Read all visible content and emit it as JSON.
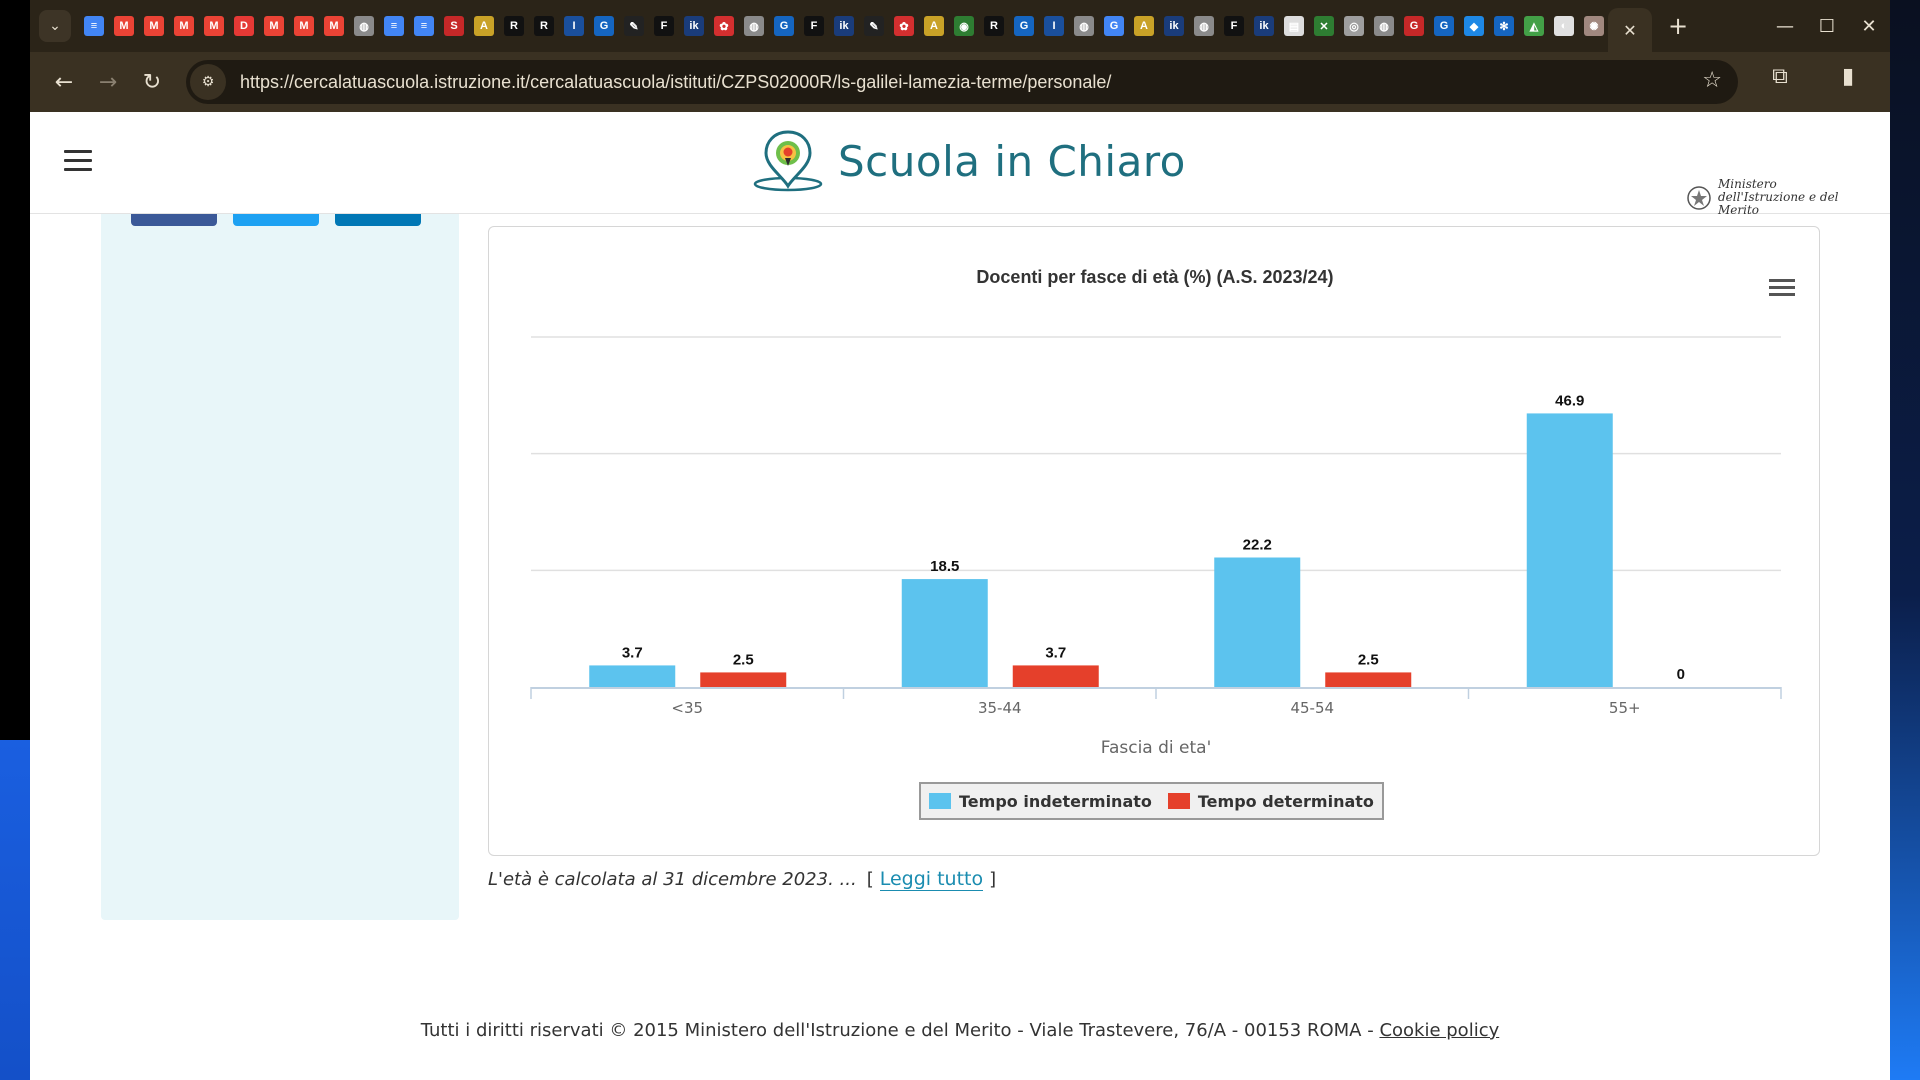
{
  "browser": {
    "url": "https://cercalatuascuola.istruzione.it/cercalatuascuola/istituti/CZPS02000R/ls-galilei-lamezia-terme/personale/",
    "favicons": [
      {
        "glyph": "≡",
        "color": "#4285f4"
      },
      {
        "glyph": "M",
        "color": "#ea4335"
      },
      {
        "glyph": "M",
        "color": "#ea4335"
      },
      {
        "glyph": "M",
        "color": "#ea4335"
      },
      {
        "glyph": "M",
        "color": "#ea4335"
      },
      {
        "glyph": "D",
        "color": "#e53935"
      },
      {
        "glyph": "M",
        "color": "#ea4335"
      },
      {
        "glyph": "M",
        "color": "#ea4335"
      },
      {
        "glyph": "M",
        "color": "#ea4335"
      },
      {
        "glyph": "◍",
        "color": "#8a8a8a"
      },
      {
        "glyph": "≡",
        "color": "#4285f4"
      },
      {
        "glyph": "≡",
        "color": "#4285f4"
      },
      {
        "glyph": "S",
        "color": "#c62828"
      },
      {
        "glyph": "A",
        "color": "#c9a227"
      },
      {
        "glyph": "R",
        "color": "#111111"
      },
      {
        "glyph": "R",
        "color": "#111111"
      },
      {
        "glyph": "I",
        "color": "#1a4f9c"
      },
      {
        "glyph": "G",
        "color": "#1565c0"
      },
      {
        "glyph": "✎",
        "color": "#222222"
      },
      {
        "glyph": "F",
        "color": "#111111"
      },
      {
        "glyph": "ik",
        "color": "#1a3c7a"
      },
      {
        "glyph": "✿",
        "color": "#d32f2f"
      },
      {
        "glyph": "◍",
        "color": "#8a8a8a"
      },
      {
        "glyph": "G",
        "color": "#1565c0"
      },
      {
        "glyph": "F",
        "color": "#111111"
      },
      {
        "glyph": "ik",
        "color": "#1a3c7a"
      },
      {
        "glyph": "✎",
        "color": "#222222"
      },
      {
        "glyph": "✿",
        "color": "#d32f2f"
      },
      {
        "glyph": "A",
        "color": "#c9a227"
      },
      {
        "glyph": "◉",
        "color": "#2e7d32"
      },
      {
        "glyph": "R",
        "color": "#111111"
      },
      {
        "glyph": "G",
        "color": "#1565c0"
      },
      {
        "glyph": "I",
        "color": "#1a4f9c"
      },
      {
        "glyph": "◍",
        "color": "#8a8a8a"
      },
      {
        "glyph": "G",
        "color": "#4285f4"
      },
      {
        "glyph": "A",
        "color": "#c9a227"
      },
      {
        "glyph": "ik",
        "color": "#1a3c7a"
      },
      {
        "glyph": "◍",
        "color": "#8a8a8a"
      },
      {
        "glyph": "F",
        "color": "#111111"
      },
      {
        "glyph": "ik",
        "color": "#1a3c7a"
      },
      {
        "glyph": "▤",
        "color": "#dddddd"
      },
      {
        "glyph": "✕",
        "color": "#2e7d32"
      },
      {
        "glyph": "◎",
        "color": "#9e9e9e"
      },
      {
        "glyph": "◍",
        "color": "#8a8a8a"
      },
      {
        "glyph": "G",
        "color": "#c62828"
      },
      {
        "glyph": "G",
        "color": "#1565c0"
      },
      {
        "glyph": "◆",
        "color": "#1e88e5"
      },
      {
        "glyph": "✻",
        "color": "#1565c0"
      },
      {
        "glyph": "◭",
        "color": "#43a047"
      },
      {
        "glyph": "◐",
        "color": "#e0e0e0"
      },
      {
        "glyph": "✺",
        "color": "#a1887f"
      }
    ]
  },
  "header": {
    "site_title": "Scuola in Chiaro",
    "ministry": "Ministero dell'Istruzione e del Merito"
  },
  "chart_data": {
    "type": "bar",
    "title": "Docenti per fasce di età (%) (A.S. 2023/24)",
    "xlabel": "Fascia di eta'",
    "ylabel": "",
    "categories": [
      "<35",
      "35-44",
      "45-54",
      "55+"
    ],
    "series": [
      {
        "name": "Tempo indeterminato",
        "values": [
          3.7,
          18.5,
          22.2,
          46.9
        ],
        "color": "#5cc3ee"
      },
      {
        "name": "Tempo determinato",
        "values": [
          2.5,
          3.7,
          2.5,
          0
        ],
        "color": "#e5402b"
      }
    ],
    "ylim": [
      0,
      60
    ],
    "grid": true,
    "legend": "bottom-center"
  },
  "note": {
    "text": "L'età è calcolata al 31 dicembre 2023. ...",
    "bracket_open": "[",
    "link": "Leggi tutto",
    "bracket_close": "]"
  },
  "footer": {
    "text": "Tutti i diritti riservati © 2015 Ministero dell'Istruzione e del Merito - Viale Trastevere, 76/A - 00153 ROMA - ",
    "link": "Cookie policy"
  },
  "colors": {
    "brand": "#1f6f7f",
    "sidebar_bg": "#e8f6f9",
    "share_facebook": "#3b5998",
    "share_twitter": "#1da1f2",
    "share_linkedin": "#0077b5",
    "link": "#1a8cb0"
  }
}
